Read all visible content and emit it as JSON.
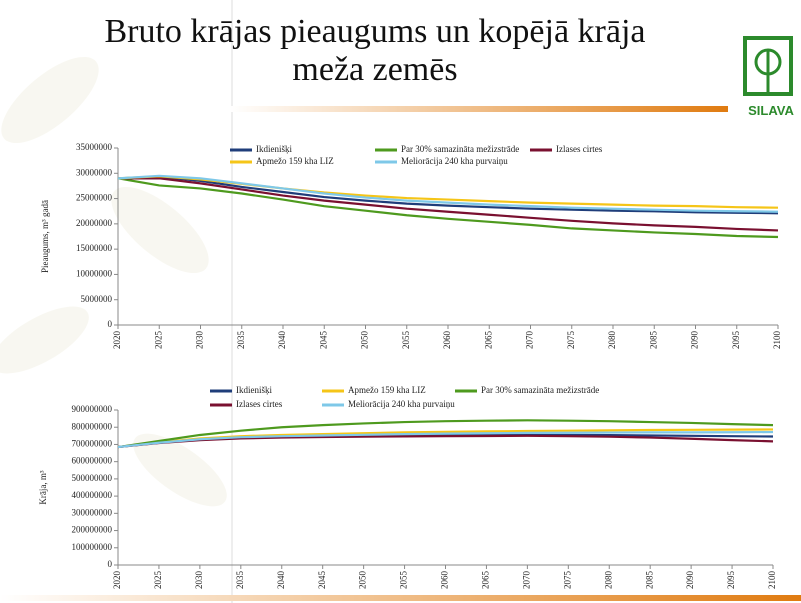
{
  "title_lines": [
    "Bruto krājas pieaugums un kopējā krāja",
    "meža zemēs"
  ],
  "logo_text": "SILAVA",
  "chart_data": [
    {
      "type": "line",
      "y_label": "Pieaugums, m³ gadā",
      "x": [
        2020,
        2025,
        2030,
        2035,
        2040,
        2045,
        2050,
        2055,
        2060,
        2065,
        2070,
        2075,
        2080,
        2085,
        2090,
        2095,
        2100
      ],
      "xlim": [
        2020,
        2100
      ],
      "xticks": [
        2020,
        2025,
        2030,
        2035,
        2040,
        2045,
        2050,
        2055,
        2060,
        2065,
        2070,
        2075,
        2080,
        2085,
        2090,
        2095,
        2100
      ],
      "ylim": [
        0,
        35000000
      ],
      "yticks": [
        0,
        5000000,
        10000000,
        15000000,
        20000000,
        25000000,
        30000000,
        35000000
      ],
      "series": [
        {
          "name": "Ikdienišķi",
          "color": "#1f3d7a",
          "values": [
            29000000,
            29300000,
            28500000,
            27300000,
            26300000,
            25300000,
            24600000,
            24000000,
            23600000,
            23300000,
            23000000,
            22800000,
            22600000,
            22500000,
            22300000,
            22200000,
            22100000
          ]
        },
        {
          "name": "Par 30% samazināta mežizstrāde",
          "color": "#4e9a1e",
          "values": [
            29000000,
            27600000,
            27000000,
            26000000,
            24800000,
            23500000,
            22600000,
            21700000,
            21000000,
            20400000,
            19800000,
            19100000,
            18700000,
            18300000,
            18000000,
            17600000,
            17400000
          ]
        },
        {
          "name": "Izlases cirtes",
          "color": "#7a1030",
          "values": [
            29000000,
            29000000,
            28000000,
            26800000,
            25600000,
            24600000,
            23800000,
            23000000,
            22400000,
            21800000,
            21200000,
            20600000,
            20100000,
            19700000,
            19400000,
            19000000,
            18700000
          ]
        },
        {
          "name": "Apmežo 159 kha LIZ",
          "color": "#f5c518",
          "values": [
            29000000,
            29400000,
            28800000,
            27900000,
            27000000,
            26200000,
            25600000,
            25100000,
            24800000,
            24500000,
            24200000,
            24000000,
            23800000,
            23600000,
            23500000,
            23300000,
            23200000
          ]
        },
        {
          "name": "Meliorācija 240 kha purvaiņu",
          "color": "#7ec8e8",
          "values": [
            29000000,
            29500000,
            29000000,
            28000000,
            27000000,
            26000000,
            25200000,
            24600000,
            24200000,
            23800000,
            23500000,
            23200000,
            23000000,
            22800000,
            22600000,
            22500000,
            22400000
          ]
        }
      ]
    },
    {
      "type": "line",
      "y_label": "Krāja, m³",
      "x": [
        2020,
        2025,
        2030,
        2035,
        2040,
        2045,
        2050,
        2055,
        2060,
        2065,
        2070,
        2075,
        2080,
        2085,
        2090,
        2095,
        2100
      ],
      "xlim": [
        2020,
        2100
      ],
      "xticks": [
        2020,
        2025,
        2030,
        2035,
        2040,
        2045,
        2050,
        2055,
        2060,
        2065,
        2070,
        2075,
        2080,
        2085,
        2090,
        2095,
        2100
      ],
      "ylim": [
        0,
        900000000
      ],
      "yticks": [
        0,
        100000000,
        200000000,
        300000000,
        400000000,
        500000000,
        600000000,
        700000000,
        800000000,
        900000000
      ],
      "series": [
        {
          "name": "Ikdienišķi",
          "color": "#1f3d7a",
          "values": [
            685000000,
            710000000,
            730000000,
            740000000,
            745000000,
            748000000,
            750000000,
            752000000,
            753000000,
            754000000,
            755000000,
            755000000,
            754000000,
            752000000,
            750000000,
            748000000,
            746000000
          ]
        },
        {
          "name": "Apmežo 159 kha LIZ",
          "color": "#f5c518",
          "values": [
            685000000,
            712000000,
            735000000,
            748000000,
            755000000,
            760000000,
            765000000,
            770000000,
            773000000,
            776000000,
            778000000,
            780000000,
            782000000,
            784000000,
            785000000,
            786000000,
            787000000
          ]
        },
        {
          "name": "Par 30% samazināta mežizstrāde",
          "color": "#4e9a1e",
          "values": [
            685000000,
            720000000,
            755000000,
            780000000,
            800000000,
            812000000,
            822000000,
            830000000,
            835000000,
            838000000,
            840000000,
            838000000,
            835000000,
            830000000,
            825000000,
            818000000,
            812000000
          ]
        },
        {
          "name": "Izlases cirtes",
          "color": "#7a1030",
          "values": [
            685000000,
            708000000,
            725000000,
            735000000,
            740000000,
            743000000,
            745000000,
            747000000,
            748000000,
            749000000,
            750000000,
            748000000,
            745000000,
            740000000,
            733000000,
            725000000,
            718000000
          ]
        },
        {
          "name": "Meliorācija 240 kha purvaiņu",
          "color": "#7ec8e8",
          "values": [
            685000000,
            710000000,
            730000000,
            742000000,
            748000000,
            752000000,
            756000000,
            760000000,
            763000000,
            765000000,
            767000000,
            768000000,
            769000000,
            770000000,
            770000000,
            771000000,
            772000000
          ]
        }
      ]
    }
  ]
}
